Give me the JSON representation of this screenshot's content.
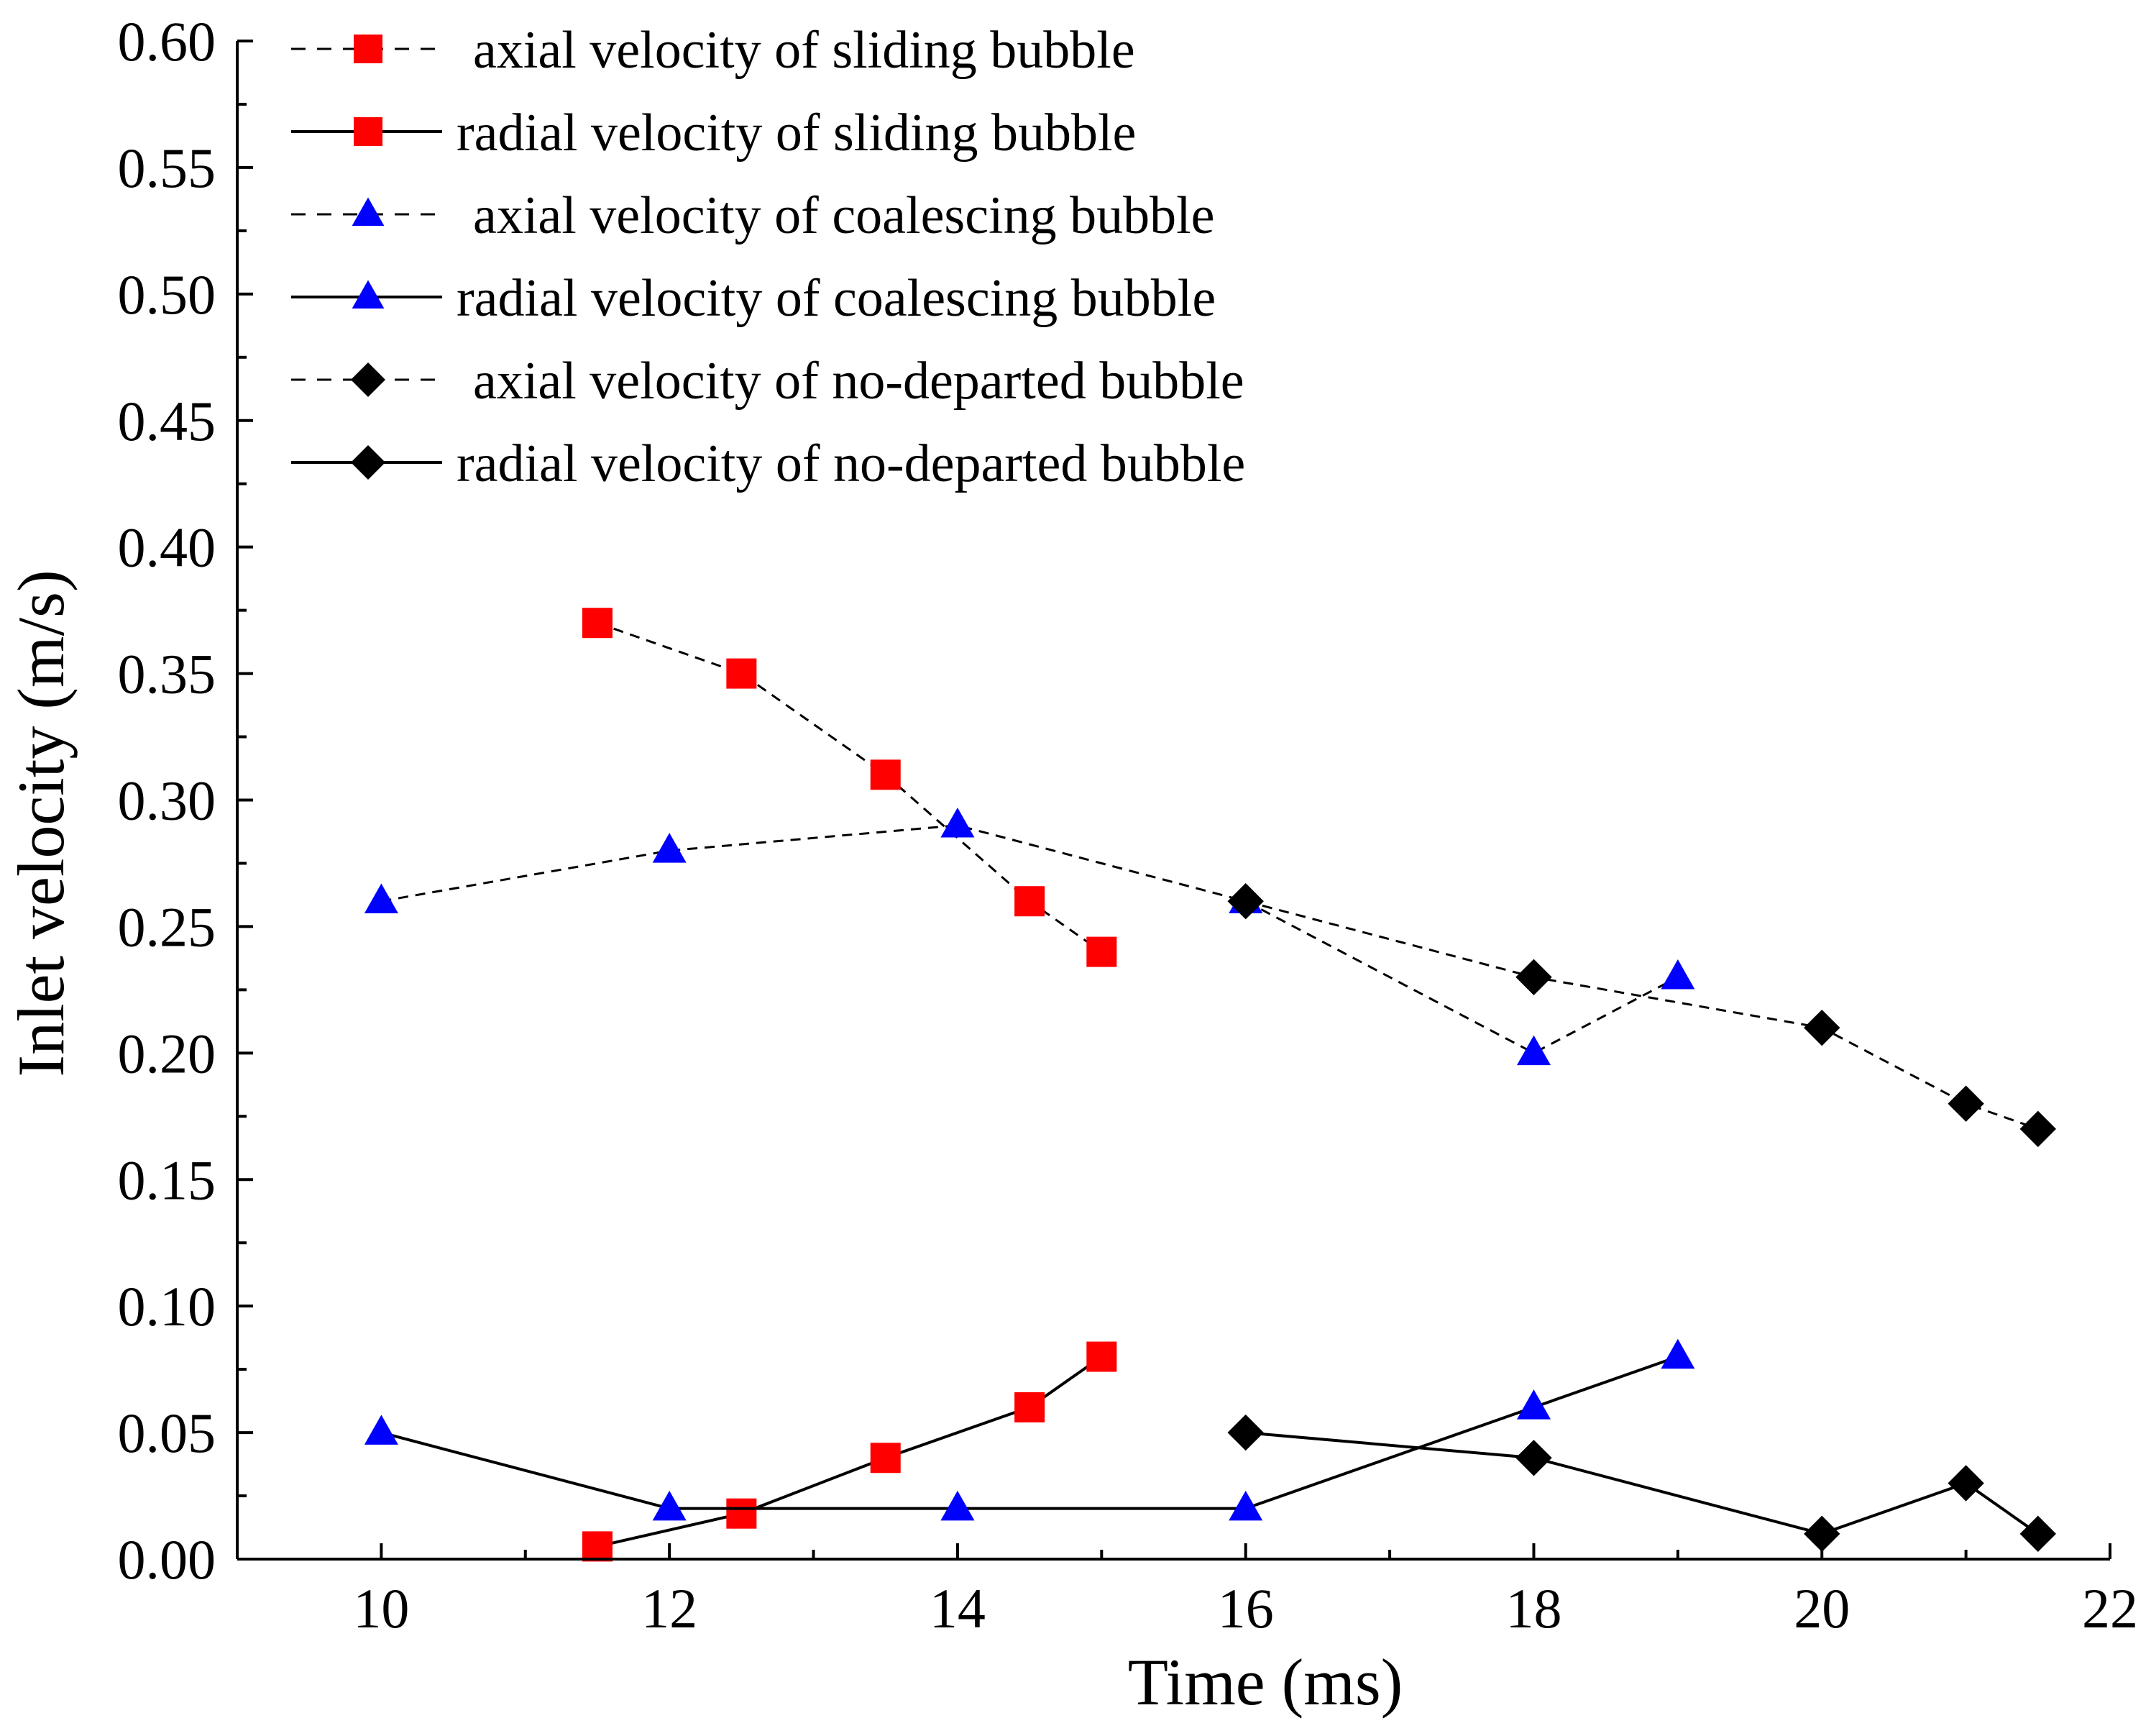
{
  "chart_data": {
    "type": "line",
    "xlabel": "Time (ms)",
    "ylabel": "Inlet velocity (m/s)",
    "xlim": [
      9,
      22
    ],
    "ylim": [
      0.0,
      0.6
    ],
    "x_ticks": [
      "10",
      "12",
      "14",
      "16",
      "18",
      "20",
      "22"
    ],
    "y_ticks": [
      "0.00",
      "0.05",
      "0.10",
      "0.15",
      "0.20",
      "0.25",
      "0.30",
      "0.35",
      "0.40",
      "0.45",
      "0.50",
      "0.55",
      "0.60"
    ],
    "grid": false,
    "legend_position": "top-left",
    "series": [
      {
        "name": "axial velocity of sliding bubble",
        "marker": "square",
        "color": "#ff0000",
        "line": "dashed",
        "x": [
          11.5,
          12.5,
          13.5,
          14.5,
          15
        ],
        "y": [
          0.37,
          0.35,
          0.31,
          0.26,
          0.24
        ]
      },
      {
        "name": "radial velocity of sliding bubble",
        "marker": "square",
        "color": "#ff0000",
        "line": "solid",
        "x": [
          11.5,
          12.5,
          13.5,
          14.5,
          15
        ],
        "y": [
          0.005,
          0.018,
          0.04,
          0.06,
          0.08
        ]
      },
      {
        "name": "axial velocity of coalescing bubble",
        "marker": "triangle",
        "color": "#0000ff",
        "line": "dashed",
        "x": [
          10,
          12,
          14,
          16,
          18,
          19
        ],
        "y": [
          0.26,
          0.28,
          0.29,
          0.26,
          0.2,
          0.23
        ]
      },
      {
        "name": "radial velocity of coalescing bubble",
        "marker": "triangle",
        "color": "#0000ff",
        "line": "solid",
        "x": [
          10,
          12,
          14,
          16,
          18,
          19
        ],
        "y": [
          0.05,
          0.02,
          0.02,
          0.02,
          0.06,
          0.08
        ]
      },
      {
        "name": "axial velocity of no-departed bubble",
        "marker": "diamond",
        "color": "#000000",
        "line": "dashed",
        "x": [
          16,
          18,
          20,
          21,
          21.5
        ],
        "y": [
          0.26,
          0.23,
          0.21,
          0.18,
          0.17
        ]
      },
      {
        "name": "radial velocity of no-departed bubble",
        "marker": "diamond",
        "color": "#000000",
        "line": "solid",
        "x": [
          16,
          18,
          20,
          21,
          21.5
        ],
        "y": [
          0.05,
          0.04,
          0.01,
          0.03,
          0.01
        ]
      }
    ]
  }
}
